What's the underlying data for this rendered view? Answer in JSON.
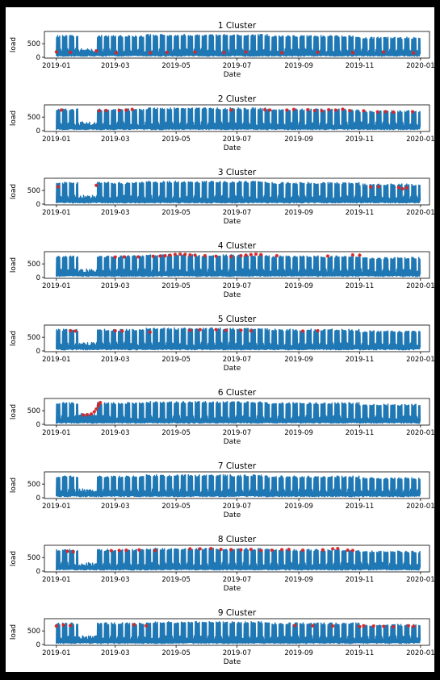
{
  "chart_data": {
    "type": "line",
    "x_ticks": [
      "2019-01",
      "2019-03",
      "2019-05",
      "2019-07",
      "2019-09",
      "2019-11",
      "2020-01"
    ],
    "y_ticks": [
      "0",
      "500"
    ],
    "xlabel": "Date",
    "ylabel": "load",
    "xlim": [
      "2018-12-20",
      "2020-01-10"
    ],
    "ylim": [
      -30,
      950
    ],
    "colors": {
      "series": "#1f77b4",
      "anomaly": "#d62728"
    },
    "panels": [
      {
        "title": "1 Cluster",
        "anomalies": [
          [
            "2019-01-01",
            200
          ],
          [
            "2019-01-15",
            180
          ],
          [
            "2019-02-10",
            230
          ],
          [
            "2019-03-02",
            170
          ],
          [
            "2019-04-05",
            160
          ],
          [
            "2019-04-22",
            180
          ],
          [
            "2019-05-20",
            190
          ],
          [
            "2019-06-18",
            175
          ],
          [
            "2019-07-10",
            200
          ],
          [
            "2019-08-15",
            170
          ],
          [
            "2019-09-20",
            180
          ],
          [
            "2019-10-25",
            170
          ],
          [
            "2019-11-25",
            190
          ],
          [
            "2019-12-25",
            160
          ]
        ]
      },
      {
        "title": "2 Cluster",
        "anomalies": [
          [
            "2019-01-06",
            760
          ],
          [
            "2019-02-13",
            730
          ],
          [
            "2019-02-20",
            740
          ],
          [
            "2019-03-05",
            750
          ],
          [
            "2019-03-12",
            760
          ],
          [
            "2019-03-18",
            780
          ],
          [
            "2019-06-25",
            760
          ],
          [
            "2019-07-29",
            770
          ],
          [
            "2019-08-03",
            760
          ],
          [
            "2019-08-20",
            760
          ],
          [
            "2019-08-27",
            780
          ],
          [
            "2019-09-10",
            770
          ],
          [
            "2019-09-17",
            740
          ],
          [
            "2019-09-24",
            730
          ],
          [
            "2019-10-01",
            770
          ],
          [
            "2019-10-08",
            760
          ],
          [
            "2019-10-15",
            790
          ],
          [
            "2019-10-22",
            740
          ],
          [
            "2019-11-05",
            730
          ],
          [
            "2019-11-19",
            690
          ],
          [
            "2019-11-27",
            700
          ],
          [
            "2019-12-05",
            680
          ],
          [
            "2019-12-24",
            700
          ]
        ]
      },
      {
        "title": "3 Cluster",
        "anomalies": [
          [
            "2019-01-03",
            640
          ],
          [
            "2019-02-10",
            690
          ],
          [
            "2019-11-12",
            630
          ],
          [
            "2019-11-20",
            640
          ],
          [
            "2019-12-10",
            610
          ],
          [
            "2019-12-14",
            560
          ],
          [
            "2019-12-18",
            600
          ]
        ]
      },
      {
        "title": "4 Cluster",
        "anomalies": [
          [
            "2019-03-01",
            750
          ],
          [
            "2019-03-10",
            760
          ],
          [
            "2019-03-24",
            760
          ],
          [
            "2019-04-08",
            780
          ],
          [
            "2019-04-15",
            790
          ],
          [
            "2019-04-20",
            800
          ],
          [
            "2019-04-25",
            820
          ],
          [
            "2019-04-30",
            850
          ],
          [
            "2019-05-05",
            860
          ],
          [
            "2019-05-10",
            850
          ],
          [
            "2019-05-15",
            830
          ],
          [
            "2019-05-20",
            820
          ],
          [
            "2019-05-30",
            800
          ],
          [
            "2019-06-10",
            780
          ],
          [
            "2019-06-25",
            770
          ],
          [
            "2019-07-05",
            800
          ],
          [
            "2019-07-10",
            820
          ],
          [
            "2019-07-15",
            840
          ],
          [
            "2019-07-20",
            860
          ],
          [
            "2019-07-25",
            840
          ],
          [
            "2019-08-10",
            800
          ],
          [
            "2019-09-30",
            790
          ],
          [
            "2019-10-25",
            830
          ],
          [
            "2019-11-01",
            820
          ]
        ]
      },
      {
        "title": "5 Cluster",
        "anomalies": [
          [
            "2019-01-15",
            740
          ],
          [
            "2019-01-20",
            730
          ],
          [
            "2019-03-01",
            740
          ],
          [
            "2019-03-08",
            730
          ],
          [
            "2019-04-05",
            690
          ],
          [
            "2019-05-15",
            760
          ],
          [
            "2019-05-25",
            780
          ],
          [
            "2019-06-10",
            780
          ],
          [
            "2019-06-20",
            760
          ],
          [
            "2019-07-05",
            760
          ],
          [
            "2019-07-15",
            740
          ],
          [
            "2019-09-05",
            730
          ],
          [
            "2019-09-20",
            740
          ]
        ]
      },
      {
        "title": "6 Cluster",
        "anomalies": [
          [
            "2019-01-28",
            340
          ],
          [
            "2019-02-01",
            350
          ],
          [
            "2019-02-05",
            380
          ],
          [
            "2019-02-08",
            460
          ],
          [
            "2019-02-10",
            560
          ],
          [
            "2019-02-12",
            680
          ],
          [
            "2019-02-13",
            760
          ],
          [
            "2019-02-14",
            800
          ]
        ]
      },
      {
        "title": "7 Cluster",
        "anomalies": []
      },
      {
        "title": "8 Cluster",
        "anomalies": [
          [
            "2019-01-12",
            730
          ],
          [
            "2019-01-18",
            710
          ],
          [
            "2019-02-25",
            750
          ],
          [
            "2019-03-05",
            760
          ],
          [
            "2019-03-12",
            770
          ],
          [
            "2019-03-25",
            780
          ],
          [
            "2019-04-10",
            760
          ],
          [
            "2019-05-15",
            820
          ],
          [
            "2019-05-25",
            820
          ],
          [
            "2019-06-05",
            830
          ],
          [
            "2019-06-15",
            800
          ],
          [
            "2019-06-25",
            790
          ],
          [
            "2019-07-05",
            780
          ],
          [
            "2019-07-15",
            800
          ],
          [
            "2019-07-25",
            760
          ],
          [
            "2019-08-05",
            770
          ],
          [
            "2019-08-15",
            790
          ],
          [
            "2019-08-22",
            800
          ],
          [
            "2019-09-05",
            770
          ],
          [
            "2019-09-25",
            780
          ],
          [
            "2019-10-05",
            820
          ],
          [
            "2019-10-10",
            830
          ],
          [
            "2019-10-20",
            770
          ],
          [
            "2019-10-25",
            760
          ]
        ]
      },
      {
        "title": "9 Cluster",
        "anomalies": [
          [
            "2019-01-01",
            680
          ],
          [
            "2019-01-08",
            720
          ],
          [
            "2019-01-15",
            700
          ],
          [
            "2019-03-20",
            730
          ],
          [
            "2019-04-01",
            690
          ],
          [
            "2019-08-28",
            700
          ],
          [
            "2019-09-15",
            690
          ],
          [
            "2019-10-05",
            680
          ],
          [
            "2019-11-01",
            660
          ],
          [
            "2019-11-05",
            690
          ],
          [
            "2019-11-15",
            680
          ],
          [
            "2019-11-25",
            670
          ],
          [
            "2019-12-05",
            650
          ],
          [
            "2019-12-20",
            690
          ],
          [
            "2019-12-25",
            670
          ]
        ]
      }
    ]
  }
}
